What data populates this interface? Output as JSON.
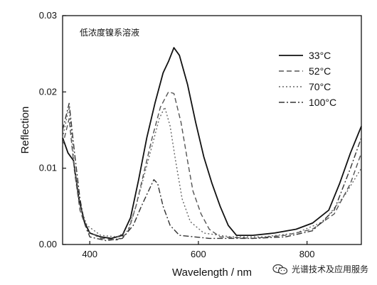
{
  "chart_data": {
    "type": "line",
    "xlabel": "Wavelength / nm",
    "ylabel": "Reflection",
    "xlim": [
      350,
      900
    ],
    "ylim": [
      0,
      0.03
    ],
    "x_ticks": [
      400,
      600,
      800
    ],
    "y_ticks": [
      0.0,
      0.01,
      0.02,
      0.03
    ],
    "x_tick_labels": [
      "400",
      "600",
      "800"
    ],
    "y_tick_labels": [
      "0.00",
      "0.01",
      "0.02",
      "0.03"
    ],
    "annotation": "低浓度镍系溶液",
    "legend_position": "top-right",
    "grid": false,
    "series": [
      {
        "name": "33°C",
        "style": "solid",
        "color": "#111111",
        "points": [
          [
            350,
            0.014
          ],
          [
            360,
            0.012
          ],
          [
            370,
            0.011
          ],
          [
            380,
            0.006
          ],
          [
            390,
            0.003
          ],
          [
            400,
            0.0015
          ],
          [
            420,
            0.001
          ],
          [
            440,
            0.0008
          ],
          [
            460,
            0.0012
          ],
          [
            475,
            0.0035
          ],
          [
            490,
            0.0085
          ],
          [
            505,
            0.014
          ],
          [
            520,
            0.0185
          ],
          [
            535,
            0.0225
          ],
          [
            545,
            0.024
          ],
          [
            555,
            0.0258
          ],
          [
            565,
            0.0248
          ],
          [
            580,
            0.021
          ],
          [
            595,
            0.016
          ],
          [
            610,
            0.0115
          ],
          [
            625,
            0.008
          ],
          [
            640,
            0.005
          ],
          [
            655,
            0.0025
          ],
          [
            670,
            0.0012
          ],
          [
            700,
            0.0012
          ],
          [
            740,
            0.0015
          ],
          [
            780,
            0.002
          ],
          [
            810,
            0.0028
          ],
          [
            840,
            0.0045
          ],
          [
            860,
            0.008
          ],
          [
            880,
            0.012
          ],
          [
            900,
            0.0155
          ]
        ]
      },
      {
        "name": "52°C",
        "style": "dashed",
        "color": "#555555",
        "points": [
          [
            350,
            0.013
          ],
          [
            362,
            0.0165
          ],
          [
            372,
            0.0095
          ],
          [
            382,
            0.0045
          ],
          [
            395,
            0.0018
          ],
          [
            420,
            0.0008
          ],
          [
            450,
            0.0006
          ],
          [
            470,
            0.0015
          ],
          [
            485,
            0.005
          ],
          [
            500,
            0.0095
          ],
          [
            515,
            0.014
          ],
          [
            530,
            0.018
          ],
          [
            545,
            0.02
          ],
          [
            555,
            0.0198
          ],
          [
            568,
            0.016
          ],
          [
            580,
            0.011
          ],
          [
            590,
            0.007
          ],
          [
            605,
            0.004
          ],
          [
            620,
            0.002
          ],
          [
            640,
            0.001
          ],
          [
            700,
            0.0008
          ],
          [
            760,
            0.0012
          ],
          [
            810,
            0.002
          ],
          [
            850,
            0.004
          ],
          [
            880,
            0.008
          ],
          [
            900,
            0.012
          ]
        ]
      },
      {
        "name": "70°C",
        "style": "dotted",
        "color": "#666666",
        "points": [
          [
            350,
            0.014
          ],
          [
            362,
            0.018
          ],
          [
            372,
            0.01
          ],
          [
            382,
            0.005
          ],
          [
            395,
            0.0025
          ],
          [
            420,
            0.0012
          ],
          [
            450,
            0.001
          ],
          [
            470,
            0.0018
          ],
          [
            485,
            0.005
          ],
          [
            500,
            0.009
          ],
          [
            515,
            0.013
          ],
          [
            528,
            0.0165
          ],
          [
            538,
            0.018
          ],
          [
            548,
            0.0155
          ],
          [
            558,
            0.011
          ],
          [
            570,
            0.006
          ],
          [
            585,
            0.003
          ],
          [
            610,
            0.0015
          ],
          [
            660,
            0.001
          ],
          [
            720,
            0.001
          ],
          [
            780,
            0.0015
          ],
          [
            830,
            0.003
          ],
          [
            870,
            0.0065
          ],
          [
            900,
            0.01
          ]
        ]
      },
      {
        "name": "100°C",
        "style": "dashdot",
        "color": "#333333",
        "points": [
          [
            350,
            0.015
          ],
          [
            362,
            0.0185
          ],
          [
            372,
            0.012
          ],
          [
            382,
            0.006
          ],
          [
            390,
            0.003
          ],
          [
            400,
            0.001
          ],
          [
            430,
            0.0005
          ],
          [
            460,
            0.0008
          ],
          [
            480,
            0.0025
          ],
          [
            495,
            0.005
          ],
          [
            508,
            0.007
          ],
          [
            518,
            0.0085
          ],
          [
            525,
            0.008
          ],
          [
            535,
            0.005
          ],
          [
            548,
            0.0025
          ],
          [
            565,
            0.0012
          ],
          [
            620,
            0.0008
          ],
          [
            700,
            0.0008
          ],
          [
            760,
            0.001
          ],
          [
            810,
            0.0018
          ],
          [
            850,
            0.0045
          ],
          [
            880,
            0.01
          ],
          [
            900,
            0.014
          ]
        ]
      }
    ]
  },
  "watermark": {
    "text": "光谱技术及应用服务",
    "icon": "wechat-icon"
  }
}
